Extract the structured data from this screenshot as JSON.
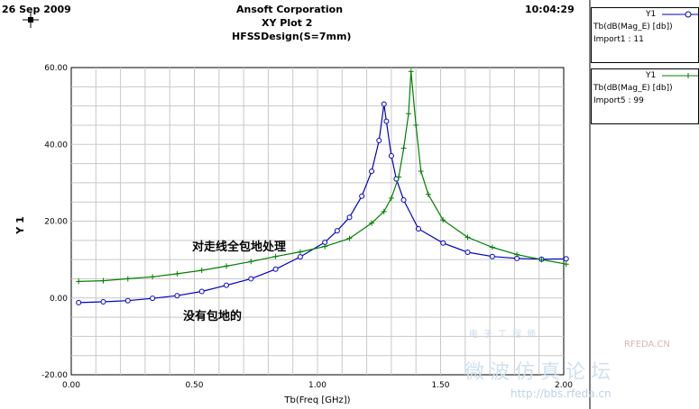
{
  "header": {
    "date": "26 Sep 2009",
    "company": "Ansoft Corporation",
    "plot_name": "XY Plot 2",
    "design": "HFSSDesign(S=7mm)",
    "time": "10:04:29"
  },
  "legend": [
    {
      "name": "Y1",
      "expr": "Tb(dB(Mag_E) [db])",
      "source": "Import1 : 11",
      "color": "#0000c8",
      "marker": "circle"
    },
    {
      "name": "Y1",
      "expr": "Tb(dB(Mag_E) [db])",
      "source": "Import5 : 99",
      "color": "#008000",
      "marker": "plus"
    }
  ],
  "watermark": {
    "line1": "微波仿真论坛",
    "line2": "http://bbs.rfeda.cn",
    "brand": "RFEDA.CN",
    "tag": "电子工程师"
  },
  "chart_data": {
    "type": "line",
    "xlabel": "Tb(Freq [GHz])",
    "ylabel": "Y 1",
    "xlim": [
      0,
      2.0
    ],
    "ylim": [
      -20,
      60
    ],
    "xticks": [
      "0.00",
      "0.50",
      "1.00",
      "1.50",
      "2.00"
    ],
    "yticks": [
      "-20.00",
      "0.00",
      "20.00",
      "40.00",
      "60.00"
    ],
    "grid": true,
    "annotations": [
      {
        "text": "对走线全包地处理",
        "x": 0.5,
        "y": 13.5
      },
      {
        "text": "没有包地的",
        "x": 0.46,
        "y": -4.5
      }
    ],
    "series": [
      {
        "color": "#0000c8",
        "marker": "circle",
        "x": [
          0.03,
          0.13,
          0.23,
          0.33,
          0.43,
          0.53,
          0.63,
          0.73,
          0.83,
          0.93,
          1.03,
          1.08,
          1.13,
          1.18,
          1.22,
          1.25,
          1.27,
          1.28,
          1.3,
          1.32,
          1.35,
          1.41,
          1.51,
          1.61,
          1.71,
          1.81,
          1.91,
          2.01
        ],
        "y": [
          -1.2,
          -1.0,
          -0.7,
          -0.1,
          0.6,
          1.7,
          3.3,
          5.0,
          7.5,
          10.7,
          14.5,
          17.5,
          21.0,
          26.5,
          33.0,
          41.0,
          50.5,
          46.0,
          37.0,
          31.0,
          25.5,
          18.0,
          14.3,
          11.9,
          10.8,
          10.3,
          10.1,
          10.2
        ]
      },
      {
        "color": "#008000",
        "marker": "plus",
        "x": [
          0.03,
          0.13,
          0.23,
          0.33,
          0.43,
          0.53,
          0.63,
          0.73,
          0.83,
          0.93,
          1.03,
          1.13,
          1.22,
          1.27,
          1.3,
          1.33,
          1.35,
          1.37,
          1.38,
          1.4,
          1.42,
          1.45,
          1.51,
          1.61,
          1.71,
          1.81,
          1.91,
          2.01
        ],
        "y": [
          4.3,
          4.5,
          5.0,
          5.5,
          6.3,
          7.2,
          8.3,
          9.5,
          10.8,
          12.0,
          13.4,
          15.5,
          19.5,
          22.5,
          26.0,
          31.5,
          39.0,
          48.0,
          59.0,
          45.0,
          33.0,
          27.0,
          20.3,
          15.8,
          13.2,
          11.3,
          10.0,
          8.8
        ]
      }
    ]
  }
}
